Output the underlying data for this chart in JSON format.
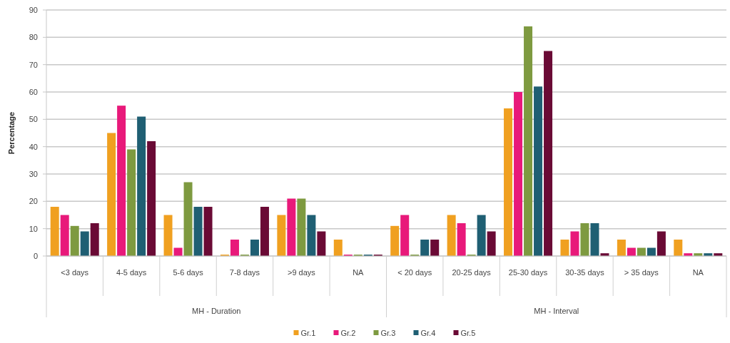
{
  "chart_data": {
    "type": "bar",
    "ylabel": "Percentage",
    "categories": [
      "<3 days",
      "4-5 days",
      "5-6 days",
      "7-8 days",
      ">9 days",
      "NA",
      "< 20 days",
      "20-25 days",
      "25-30 days",
      "30-35 days",
      "> 35 days",
      "NA"
    ],
    "series": [
      {
        "name": "Gr.1",
        "color": "#f0a020",
        "values": [
          18,
          45,
          15,
          0.5,
          15,
          6,
          11,
          15,
          54,
          6,
          6,
          6
        ]
      },
      {
        "name": "Gr.2",
        "color": "#e8197a",
        "values": [
          15,
          55,
          3,
          6,
          21,
          0.5,
          15,
          12,
          60,
          9,
          3,
          1
        ]
      },
      {
        "name": "Gr.3",
        "color": "#7e9a40",
        "values": [
          11,
          39,
          27,
          0.5,
          21,
          0.5,
          0.5,
          0.5,
          84,
          12,
          3,
          1
        ]
      },
      {
        "name": "Gr.4",
        "color": "#1f5f73",
        "values": [
          9,
          51,
          18,
          6,
          15,
          0.5,
          6,
          15,
          62,
          12,
          3,
          1
        ]
      },
      {
        "name": "Gr.5",
        "color": "#6a0a35",
        "values": [
          12,
          42,
          18,
          18,
          9,
          0.5,
          6,
          9,
          75,
          1,
          9,
          1
        ]
      }
    ],
    "ylim": [
      0,
      90
    ],
    "yticks": [
      0,
      10,
      20,
      30,
      40,
      50,
      60,
      70,
      80,
      90
    ],
    "grid": "y",
    "legend": "bottom",
    "annotations": [
      "MH - Duration",
      "MH - Interval"
    ]
  }
}
